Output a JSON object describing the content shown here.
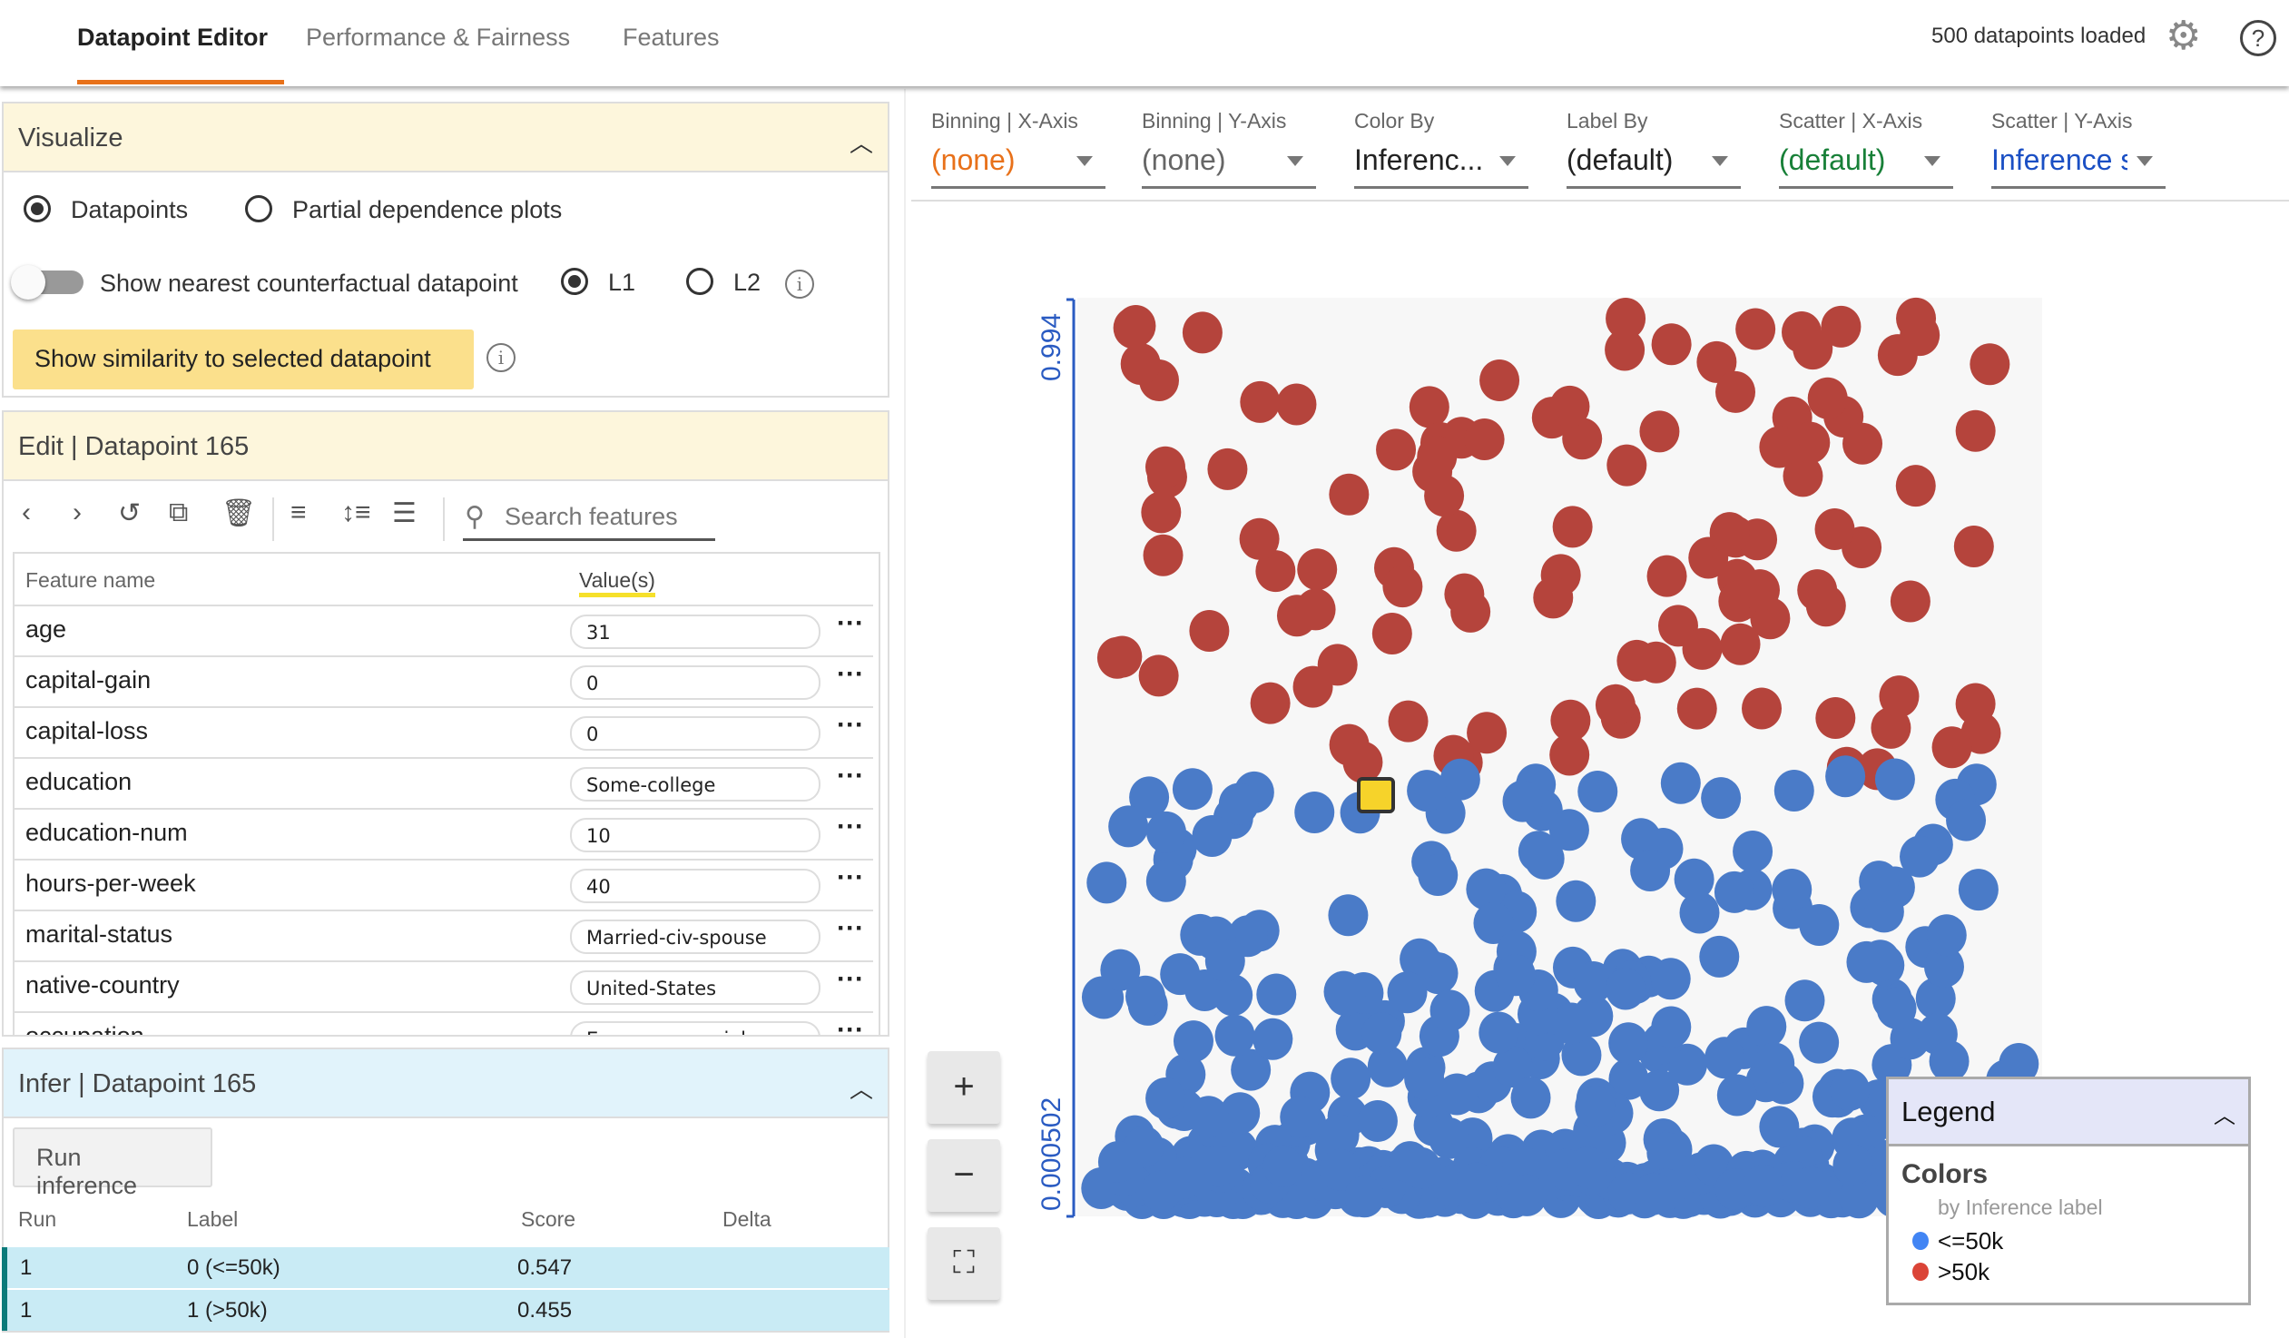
{
  "nav": {
    "tabs": [
      {
        "label": "Datapoint Editor",
        "active": true
      },
      {
        "label": "Performance & Fairness"
      },
      {
        "label": "Features"
      }
    ],
    "status": "500 datapoints loaded",
    "accent": "#e8711a"
  },
  "visualize": {
    "title": "Visualize",
    "mode_options": [
      "Datapoints",
      "Partial dependence plots"
    ],
    "selected_mode": "Datapoints",
    "counterfactual_label": "Show nearest counterfactual datapoint",
    "counterfactual_on": false,
    "distance_options": [
      "L1",
      "L2"
    ],
    "selected_distance": "L1",
    "similarity_button": "Show similarity to selected datapoint"
  },
  "edit": {
    "title": "Edit | Datapoint 165",
    "search_placeholder": "Search features",
    "col_feature": "Feature name",
    "col_value": "Value(s)",
    "features": [
      {
        "name": "age",
        "value": "31"
      },
      {
        "name": "capital-gain",
        "value": "0"
      },
      {
        "name": "capital-loss",
        "value": "0"
      },
      {
        "name": "education",
        "value": "Some-college"
      },
      {
        "name": "education-num",
        "value": "10"
      },
      {
        "name": "hours-per-week",
        "value": "40"
      },
      {
        "name": "marital-status",
        "value": "Married-civ-spouse"
      },
      {
        "name": "native-country",
        "value": "United-States"
      },
      {
        "name": "occupation",
        "value": "Exec-managerial"
      }
    ]
  },
  "infer": {
    "title": "Infer | Datapoint 165",
    "run_button": "Run inference",
    "columns": [
      "Run",
      "Label",
      "Score",
      "Delta"
    ],
    "rows": [
      {
        "run": "1",
        "label": "0 (<=50k)",
        "score": "0.547",
        "delta": ""
      },
      {
        "run": "1",
        "label": "1 (>50k)",
        "score": "0.455",
        "delta": ""
      }
    ]
  },
  "controls": [
    {
      "label": "Binning | X-Axis",
      "value": "(none)",
      "color": "#e8711a"
    },
    {
      "label": "Binning | Y-Axis",
      "value": "(none)",
      "color": "#666666"
    },
    {
      "label": "Color By",
      "value": "Inferenc...",
      "color": "#222222"
    },
    {
      "label": "Label By",
      "value": "(default)",
      "color": "#222222"
    },
    {
      "label": "Scatter | X-Axis",
      "value": "(default)",
      "color": "#188038"
    },
    {
      "label": "Scatter | Y-Axis",
      "value": "Inference score",
      "color": "#1a4fc4"
    }
  ],
  "plot": {
    "y_max_label": "0.994",
    "y_min_label": "0.000502",
    "axis_color": "#2a5bc2"
  },
  "legend": {
    "title": "Legend",
    "section": "Colors",
    "subtitle": "by Inference label",
    "items": [
      {
        "label": "<=50k",
        "color": "#4a7bc8"
      },
      {
        "label": ">50k",
        "color": "#b5443c"
      }
    ]
  }
}
